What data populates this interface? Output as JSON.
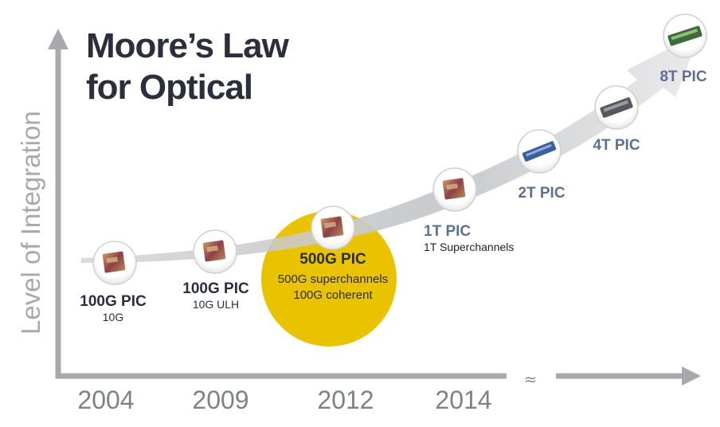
{
  "title": {
    "line1": "Moore’s Law",
    "line2": "for Optical"
  },
  "axis": {
    "y_label": "Level of Integration",
    "break_mark": "≈"
  },
  "years": [
    "2004",
    "2009",
    "2012",
    "2014"
  ],
  "milestones": [
    {
      "label": "100G PIC",
      "sub": [
        "10G"
      ],
      "chip": "pic-chip-icon"
    },
    {
      "label": "100G PIC",
      "sub": [
        "10G ULH"
      ],
      "chip": "pic-chip-icon"
    },
    {
      "label": "500G PIC",
      "sub": [
        "500G superchannels",
        "100G coherent"
      ],
      "chip": "pic-chip-icon",
      "highlight": "#e9c300"
    },
    {
      "label": "1T PIC",
      "sub": [
        "1T Superchannels"
      ],
      "chip": "pic-chip-icon"
    },
    {
      "label": "2T PIC",
      "sub": [],
      "chip": "blue-pic-chip-icon"
    },
    {
      "label": "4T PIC",
      "sub": [],
      "chip": "gray-pic-chip-icon"
    },
    {
      "label": "8T PIC",
      "sub": [],
      "chip": "green-pic-chip-icon"
    }
  ],
  "colors": {
    "axis": "#a7a9ac",
    "arrow_band": "#c9cacc",
    "highlight": "#e9c300",
    "label_blue": "#5d6f94",
    "title": "#2b2e3b"
  }
}
